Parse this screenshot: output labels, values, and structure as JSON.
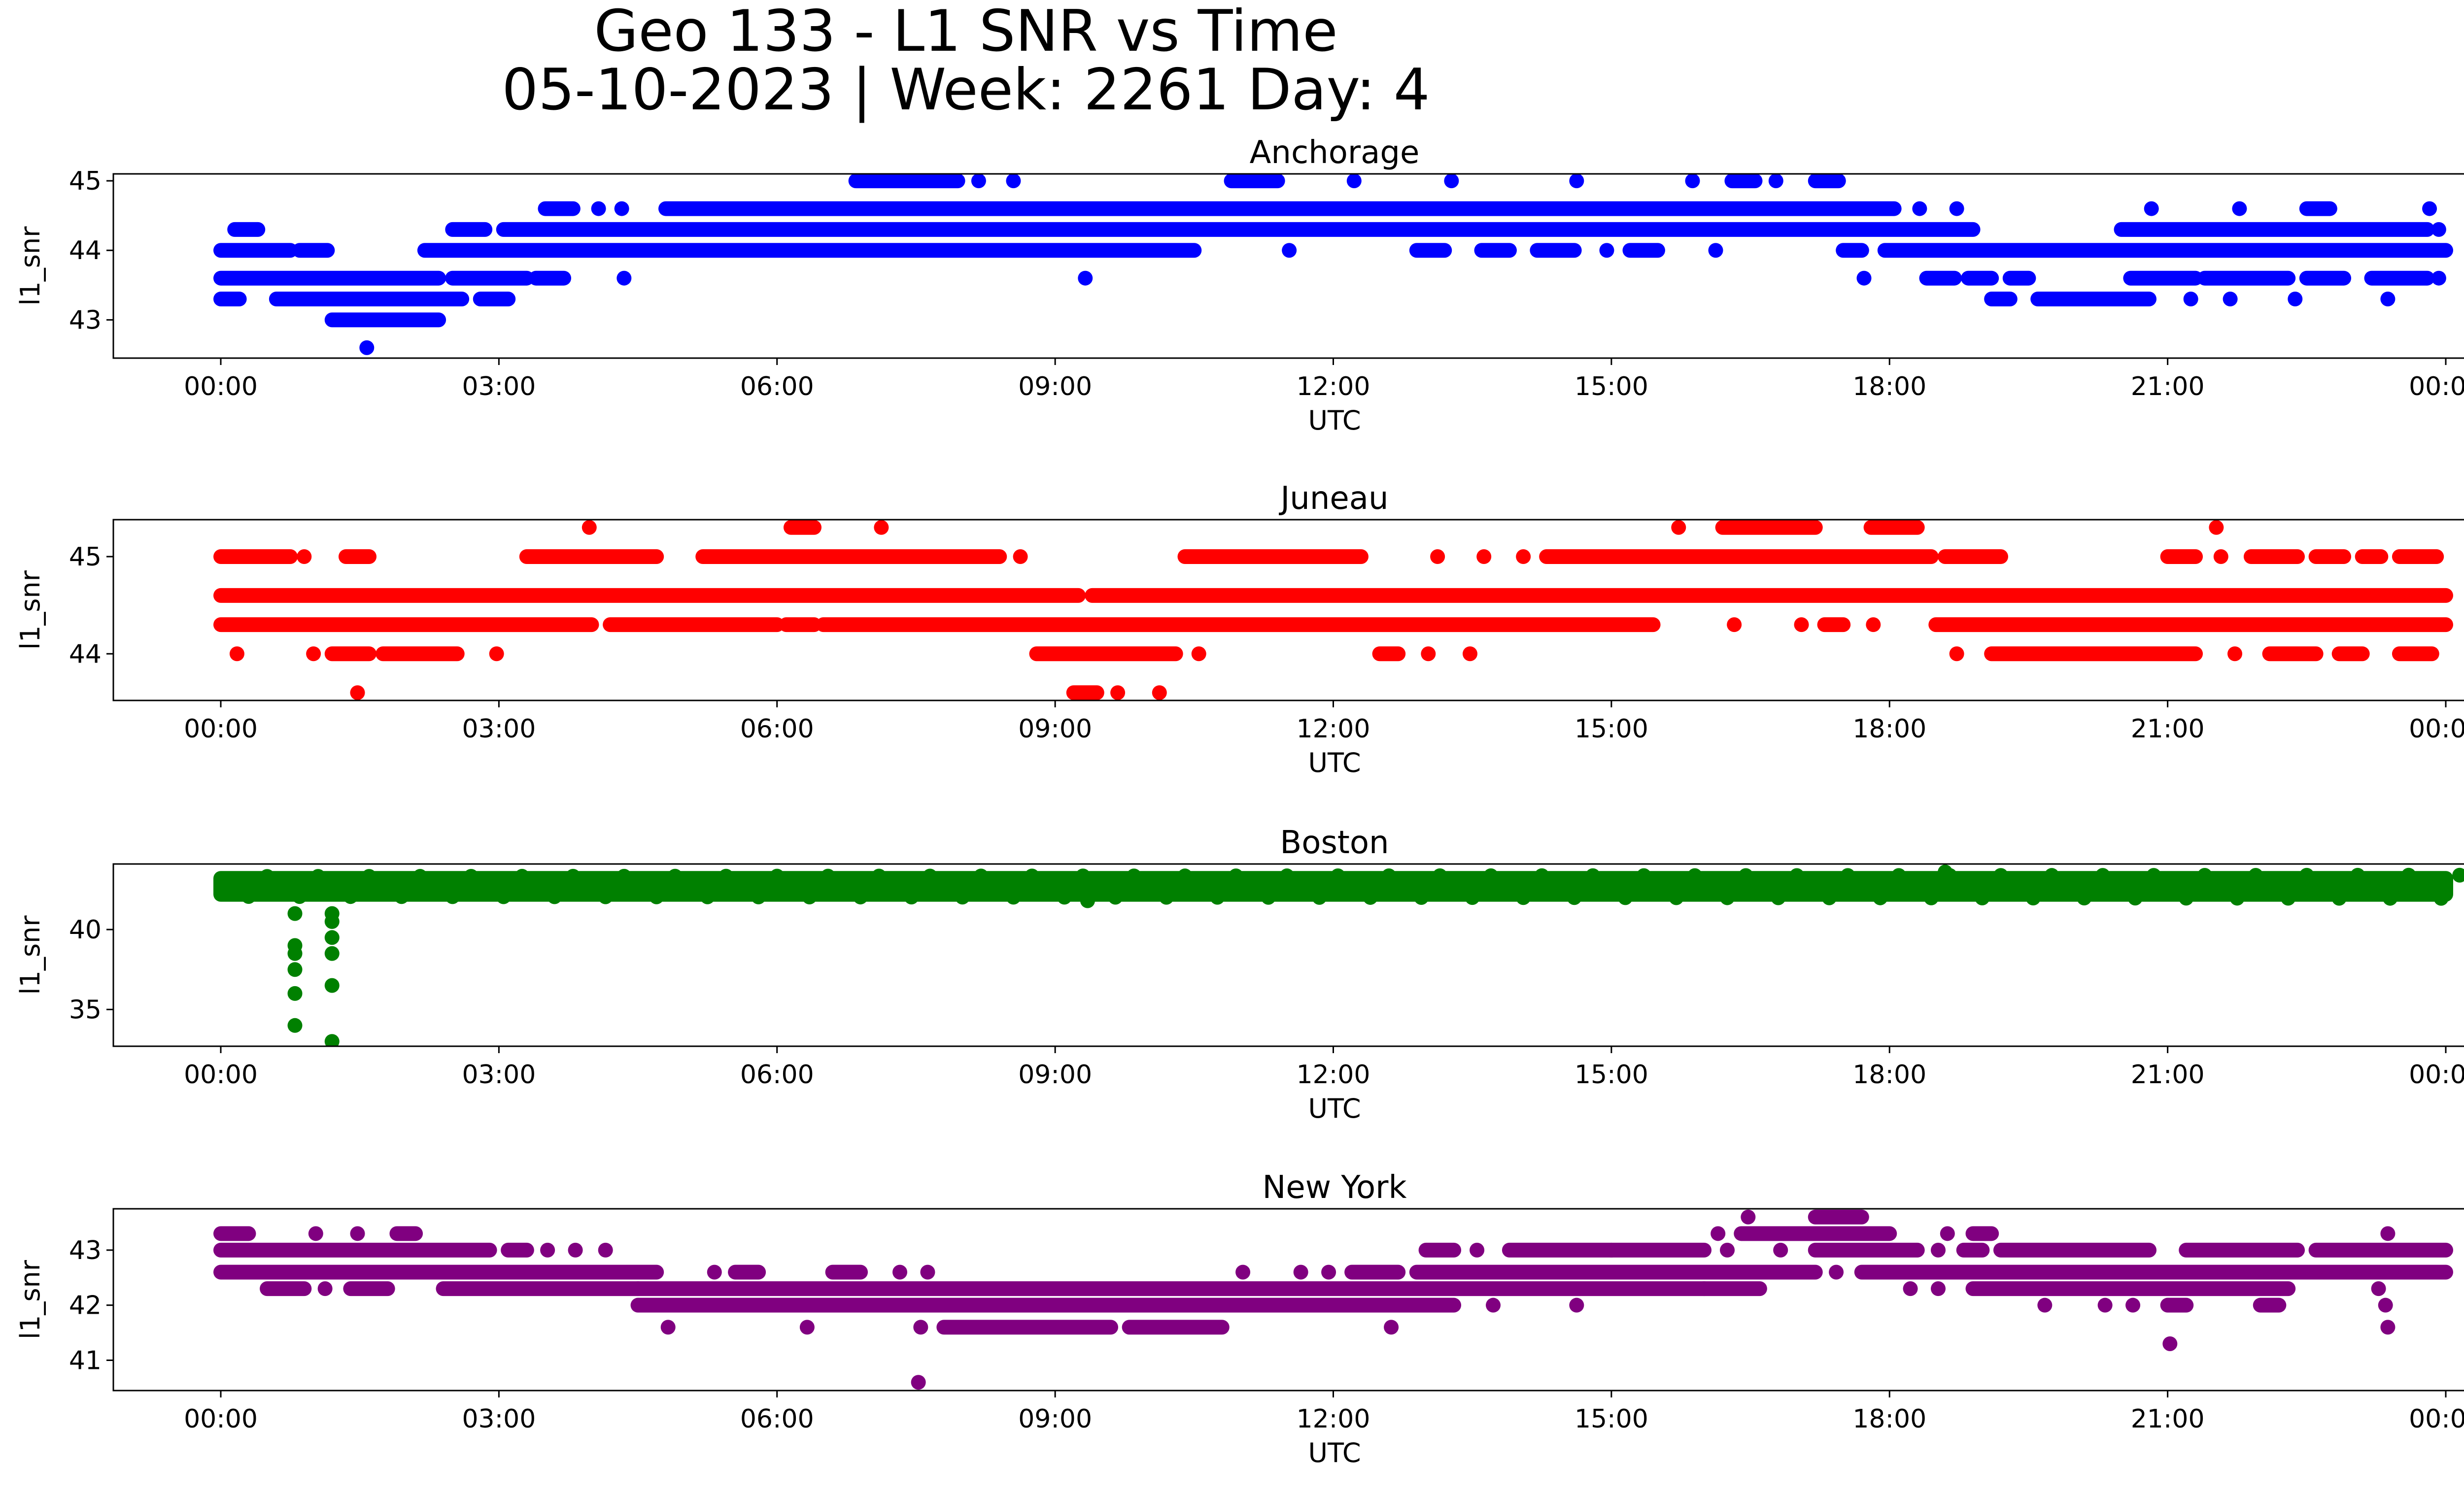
{
  "figure": {
    "title_line1": "Geo 133 - L1 SNR vs Time",
    "title_line2": "05-10-2023 | Week: 2261 Day: 4"
  },
  "chart_data": [
    {
      "type": "scatter",
      "title": "Anchorage",
      "xlabel": "UTC",
      "ylabel": "l1_snr",
      "color": "#0000ff",
      "xlim": [
        "00:00",
        "24:00"
      ],
      "ylim": [
        42.45,
        45.1
      ],
      "yticks": [
        43,
        44,
        45
      ],
      "xticks": [
        "00:00",
        "03:00",
        "06:00",
        "09:00",
        "12:00",
        "15:00",
        "18:00",
        "21:00",
        "00:00"
      ],
      "series": [
        {
          "level": 42.6,
          "ranges": [
            [
              1.55,
              1.6
            ]
          ]
        },
        {
          "level": 43.0,
          "ranges": [
            [
              1.2,
              2.35
            ]
          ]
        },
        {
          "level": 43.3,
          "ranges": [
            [
              0.0,
              0.2
            ],
            [
              0.6,
              2.6
            ],
            [
              2.8,
              3.1
            ],
            [
              19.1,
              19.3
            ],
            [
              19.6,
              20.8
            ],
            [
              21.2,
              21.3
            ],
            [
              21.6,
              21.75
            ],
            [
              22.3,
              22.45
            ],
            [
              23.3,
              23.45
            ]
          ]
        },
        {
          "level": 43.6,
          "ranges": [
            [
              0.0,
              2.35
            ],
            [
              2.5,
              3.3
            ],
            [
              3.4,
              3.7
            ],
            [
              4.3,
              4.4
            ],
            [
              9.3,
              9.35
            ],
            [
              17.65,
              17.8
            ],
            [
              18.4,
              18.7
            ],
            [
              18.85,
              19.1
            ],
            [
              19.3,
              19.5
            ],
            [
              20.6,
              21.3
            ],
            [
              21.4,
              22.3
            ],
            [
              22.5,
              22.9
            ],
            [
              23.2,
              23.8
            ],
            [
              23.85,
              24.0
            ]
          ]
        },
        {
          "level": 44.0,
          "ranges": [
            [
              0.0,
              0.75
            ],
            [
              0.85,
              1.15
            ],
            [
              2.2,
              10.5
            ],
            [
              11.5,
              11.55
            ],
            [
              12.9,
              13.2
            ],
            [
              13.6,
              13.9
            ],
            [
              14.2,
              14.6
            ],
            [
              14.9,
              15.0
            ],
            [
              15.2,
              15.5
            ],
            [
              16.1,
              16.15
            ],
            [
              17.5,
              17.7
            ],
            [
              17.95,
              24.0
            ]
          ]
        },
        {
          "level": 44.3,
          "ranges": [
            [
              0.15,
              0.4
            ],
            [
              2.5,
              2.85
            ],
            [
              3.05,
              18.9
            ],
            [
              20.5,
              23.8
            ],
            [
              23.85,
              24.0
            ]
          ]
        },
        {
          "level": 44.6,
          "ranges": [
            [
              3.5,
              3.8
            ],
            [
              4.0,
              4.15
            ],
            [
              4.3,
              4.35
            ],
            [
              4.8,
              18.05
            ],
            [
              18.3,
              18.35
            ],
            [
              18.7,
              18.75
            ],
            [
              20.8,
              20.85
            ],
            [
              21.7,
              21.85
            ],
            [
              22.5,
              22.75
            ],
            [
              23.8,
              23.85
            ]
          ]
        },
        {
          "level": 45.0,
          "ranges": [
            [
              6.85,
              7.95
            ],
            [
              8.15,
              8.2
            ],
            [
              8.5,
              8.6
            ],
            [
              10.9,
              11.4
            ],
            [
              12.2,
              12.25
            ],
            [
              13.25,
              13.3
            ],
            [
              14.55,
              14.7
            ],
            [
              15.85,
              15.9
            ],
            [
              16.3,
              16.55
            ],
            [
              16.75,
              16.8
            ],
            [
              17.2,
              17.45
            ]
          ]
        }
      ]
    },
    {
      "type": "scatter",
      "title": "Juneau",
      "xlabel": "UTC",
      "ylabel": "l1_snr",
      "color": "#ff0000",
      "xlim": [
        "00:00",
        "24:00"
      ],
      "ylim": [
        43.52,
        45.38
      ],
      "yticks": [
        44,
        45
      ],
      "xticks": [
        "00:00",
        "03:00",
        "06:00",
        "09:00",
        "12:00",
        "15:00",
        "18:00",
        "21:00",
        "00:00"
      ],
      "series": [
        {
          "level": 43.6,
          "ranges": [
            [
              1.45,
              1.5
            ],
            [
              9.2,
              9.45
            ],
            [
              9.65,
              9.7
            ],
            [
              10.1,
              10.15
            ]
          ]
        },
        {
          "level": 44.0,
          "ranges": [
            [
              0.15,
              0.2
            ],
            [
              0.95,
              1.05
            ],
            [
              1.2,
              1.6
            ],
            [
              1.75,
              2.55
            ],
            [
              2.9,
              3.05
            ],
            [
              8.8,
              10.3
            ],
            [
              10.5,
              10.6
            ],
            [
              12.5,
              12.7
            ],
            [
              12.95,
              13.1
            ],
            [
              13.45,
              13.5
            ],
            [
              18.7,
              18.75
            ],
            [
              19.1,
              21.3
            ],
            [
              21.7,
              21.75
            ],
            [
              22.1,
              22.6
            ],
            [
              22.85,
              23.1
            ],
            [
              23.5,
              23.85
            ]
          ]
        },
        {
          "level": 44.3,
          "ranges": [
            [
              0.0,
              4.0
            ],
            [
              4.2,
              6.0
            ],
            [
              6.1,
              6.4
            ],
            [
              6.5,
              15.45
            ],
            [
              16.3,
              16.35
            ],
            [
              17.0,
              17.1
            ],
            [
              17.3,
              17.5
            ],
            [
              17.8,
              17.85
            ],
            [
              18.5,
              24.0
            ]
          ]
        },
        {
          "level": 44.6,
          "ranges": [
            [
              0.0,
              9.25
            ],
            [
              9.4,
              24.0
            ]
          ]
        },
        {
          "level": 45.0,
          "ranges": [
            [
              0.0,
              0.75
            ],
            [
              0.85,
              0.95
            ],
            [
              1.35,
              1.6
            ],
            [
              3.3,
              4.7
            ],
            [
              5.2,
              8.4
            ],
            [
              8.6,
              8.65
            ],
            [
              10.4,
              12.3
            ],
            [
              13.1,
              13.15
            ],
            [
              13.55,
              13.7
            ],
            [
              14.0,
              14.1
            ],
            [
              14.3,
              18.45
            ],
            [
              18.6,
              19.2
            ],
            [
              21.0,
              21.3
            ],
            [
              21.55,
              21.6
            ],
            [
              21.9,
              22.4
            ],
            [
              22.6,
              22.9
            ],
            [
              23.1,
              23.3
            ],
            [
              23.5,
              23.9
            ]
          ]
        },
        {
          "level": 45.3,
          "ranges": [
            [
              3.95,
              4.0
            ],
            [
              6.15,
              6.4
            ],
            [
              7.1,
              7.15
            ],
            [
              15.7,
              15.75
            ],
            [
              16.2,
              17.2
            ],
            [
              17.8,
              18.3
            ],
            [
              21.5,
              21.55
            ]
          ]
        }
      ]
    },
    {
      "type": "scatter",
      "title": "Boston",
      "xlabel": "UTC",
      "ylabel": "l1_snr",
      "color": "#008000",
      "xlim": [
        "00:00",
        "24:00"
      ],
      "ylim": [
        32.7,
        44.1
      ],
      "yticks": [
        35,
        40
      ],
      "xticks": [
        "00:00",
        "03:00",
        "06:00",
        "09:00",
        "12:00",
        "15:00",
        "18:00",
        "21:00",
        "00:00"
      ],
      "band": {
        "x_start": 0.0,
        "x_end": 24.0,
        "y_min": 42.2,
        "y_max": 43.2
      },
      "outliers": [
        {
          "x": 0.8,
          "y": 41.0
        },
        {
          "x": 0.8,
          "y": 39.0
        },
        {
          "x": 0.8,
          "y": 38.5
        },
        {
          "x": 0.8,
          "y": 37.5
        },
        {
          "x": 0.8,
          "y": 36.0
        },
        {
          "x": 0.8,
          "y": 34.0
        },
        {
          "x": 1.2,
          "y": 41.0
        },
        {
          "x": 1.2,
          "y": 40.5
        },
        {
          "x": 1.2,
          "y": 39.5
        },
        {
          "x": 1.2,
          "y": 38.5
        },
        {
          "x": 1.2,
          "y": 36.5
        },
        {
          "x": 1.2,
          "y": 33.0
        },
        {
          "x": 9.35,
          "y": 41.8
        },
        {
          "x": 18.6,
          "y": 43.6
        }
      ]
    },
    {
      "type": "scatter",
      "title": "New York",
      "xlabel": "UTC",
      "ylabel": "l1_snr",
      "color": "#800080",
      "xlim": [
        "00:00",
        "24:00"
      ],
      "ylim": [
        40.45,
        43.75
      ],
      "yticks": [
        41,
        42,
        43
      ],
      "xticks": [
        "00:00",
        "03:00",
        "06:00",
        "09:00",
        "12:00",
        "15:00",
        "18:00",
        "21:00",
        "00:00"
      ],
      "series": [
        {
          "level": 40.6,
          "ranges": [
            [
              7.5,
              7.55
            ]
          ]
        },
        {
          "level": 41.3,
          "ranges": [
            [
              21.0,
              21.05
            ]
          ]
        },
        {
          "level": 41.6,
          "ranges": [
            [
              4.8,
              4.85
            ],
            [
              6.3,
              6.35
            ],
            [
              7.5,
              7.6
            ],
            [
              7.8,
              9.6
            ],
            [
              9.8,
              10.8
            ],
            [
              12.6,
              12.65
            ],
            [
              23.35,
              23.4
            ]
          ]
        },
        {
          "level": 42.0,
          "ranges": [
            [
              4.5,
              13.3
            ],
            [
              13.7,
              13.75
            ],
            [
              14.6,
              14.65
            ],
            [
              19.6,
              19.75
            ],
            [
              20.3,
              20.35
            ],
            [
              20.6,
              20.65
            ],
            [
              21.0,
              21.2
            ],
            [
              22.0,
              22.2
            ],
            [
              23.3,
              23.4
            ]
          ]
        },
        {
          "level": 42.3,
          "ranges": [
            [
              0.5,
              0.9
            ],
            [
              1.1,
              1.15
            ],
            [
              1.4,
              1.8
            ],
            [
              2.4,
              4.5
            ],
            [
              4.5,
              16.0
            ],
            [
              16.0,
              16.6
            ],
            [
              18.2,
              18.25
            ],
            [
              18.5,
              18.55
            ],
            [
              18.9,
              22.3
            ],
            [
              23.2,
              23.35
            ]
          ]
        },
        {
          "level": 42.6,
          "ranges": [
            [
              0.0,
              4.7
            ],
            [
              5.3,
              5.35
            ],
            [
              5.55,
              5.8
            ],
            [
              6.6,
              6.9
            ],
            [
              7.3,
              7.35
            ],
            [
              7.6,
              7.65
            ],
            [
              11.0,
              11.05
            ],
            [
              11.6,
              11.7
            ],
            [
              11.9,
              12.0
            ],
            [
              12.2,
              12.7
            ],
            [
              12.9,
              17.2
            ],
            [
              17.4,
              17.45
            ],
            [
              17.7,
              24.0
            ]
          ]
        },
        {
          "level": 43.0,
          "ranges": [
            [
              0.0,
              2.9
            ],
            [
              3.1,
              3.3
            ],
            [
              3.5,
              3.55
            ],
            [
              3.8,
              3.85
            ],
            [
              4.1,
              4.2
            ],
            [
              13.0,
              13.3
            ],
            [
              13.5,
              13.6
            ],
            [
              13.9,
              15.0
            ],
            [
              15.0,
              16.0
            ],
            [
              16.2,
              16.3
            ],
            [
              16.8,
              16.85
            ],
            [
              17.2,
              18.3
            ],
            [
              18.5,
              18.55
            ],
            [
              18.8,
              19.0
            ],
            [
              19.2,
              20.8
            ],
            [
              21.2,
              22.4
            ],
            [
              22.6,
              24.0
            ]
          ]
        },
        {
          "level": 43.3,
          "ranges": [
            [
              0.0,
              0.3
            ],
            [
              1.0,
              1.05
            ],
            [
              1.45,
              1.5
            ],
            [
              1.9,
              2.1
            ],
            [
              16.1,
              16.2
            ],
            [
              16.4,
              18.0
            ],
            [
              18.6,
              18.65
            ],
            [
              18.9,
              19.1
            ],
            [
              23.3,
              23.45
            ]
          ]
        },
        {
          "level": 43.6,
          "ranges": [
            [
              16.45,
              16.5
            ],
            [
              17.2,
              17.7
            ]
          ]
        }
      ]
    }
  ]
}
